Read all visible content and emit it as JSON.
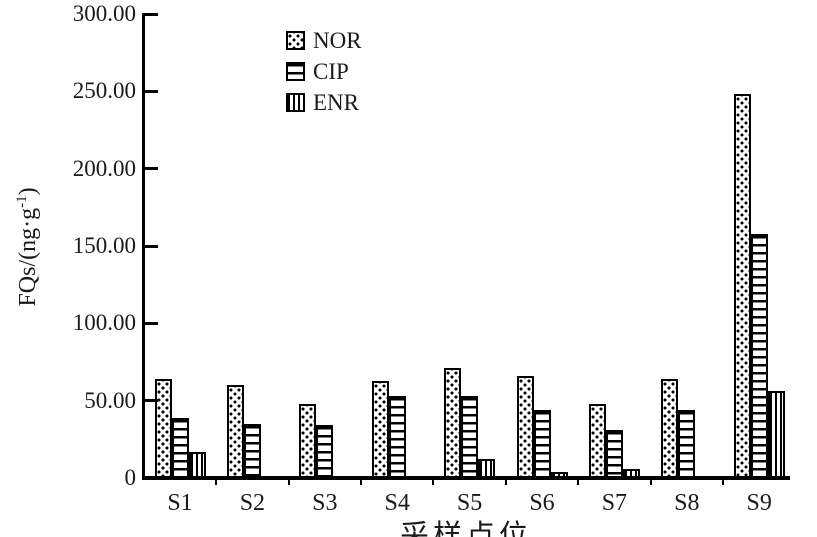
{
  "figure": {
    "y_axis_title_prefix": "FQs/(ng·g",
    "y_axis_title_sup": "-1",
    "y_axis_title_suffix": ")",
    "x_axis_title": "采样点位"
  },
  "chart_data": {
    "type": "bar",
    "title": "",
    "xlabel": "采样点位",
    "ylabel": "FQs/(ng·g⁻¹)",
    "ylim": [
      0,
      300
    ],
    "grid": false,
    "legend_position": "inside-top-center",
    "background_color": "#ffffff",
    "bar_edge_color": "#000000",
    "categories": [
      "S1",
      "S2",
      "S3",
      "S4",
      "S5",
      "S6",
      "S7",
      "S8",
      "S9"
    ],
    "y_ticks": [
      {
        "value": 0,
        "label": "0"
      },
      {
        "value": 50,
        "label": "50.00"
      },
      {
        "value": 100,
        "label": "100.00"
      },
      {
        "value": 150,
        "label": "150.00"
      },
      {
        "value": 200,
        "label": "200.00"
      },
      {
        "value": 250,
        "label": "250.00"
      },
      {
        "value": 300,
        "label": "300.00"
      }
    ],
    "series": [
      {
        "name": "NOR",
        "pattern": "dots",
        "values": [
          64,
          60,
          48,
          63,
          71,
          66,
          48,
          64,
          248
        ]
      },
      {
        "name": "CIP",
        "pattern": "hlines",
        "values": [
          39,
          35,
          34,
          53,
          53,
          44,
          31,
          44,
          158
        ]
      },
      {
        "name": "ENR",
        "pattern": "vlines",
        "values": [
          17,
          0,
          0,
          0,
          12,
          4,
          6,
          0,
          56
        ]
      }
    ]
  }
}
